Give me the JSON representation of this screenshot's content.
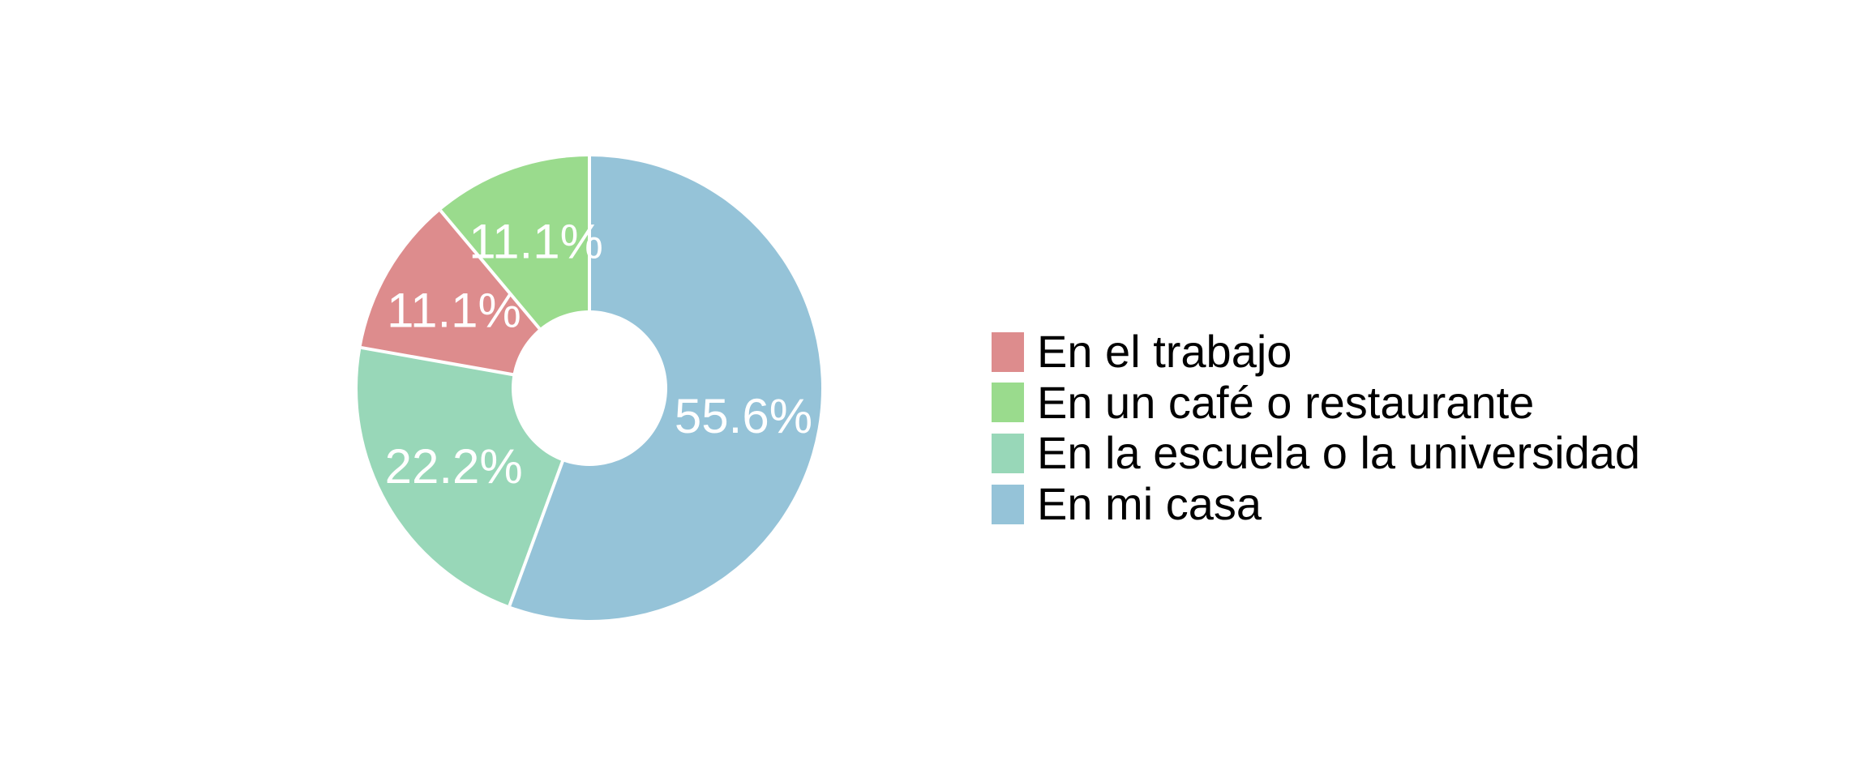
{
  "page": {
    "background": "#ffffff"
  },
  "chart_data": {
    "type": "pie",
    "subtype": "donut",
    "title": "",
    "categories": [
      "En el trabajo",
      "En un café o restaurante",
      "En la escuela o la universidad",
      "En mi casa"
    ],
    "values": [
      11.1,
      11.1,
      22.2,
      55.6
    ],
    "percent_labels": [
      "11.1%",
      "11.1%",
      "22.2%",
      "55.6%"
    ],
    "colors": [
      "#dd8c8d",
      "#9adb8d",
      "#98d7b8",
      "#95c3d8"
    ],
    "draw_order_clockwise_from_top": [
      3,
      2,
      0,
      1
    ],
    "start_angle_clockwise_from_top_deg": 0,
    "hole_ratio": 0.336,
    "percent_label_color": "#ffffff",
    "slice_divider_color": "#ffffff",
    "legend_position": "right",
    "legend_text_color": "#000000",
    "grid": "off"
  }
}
